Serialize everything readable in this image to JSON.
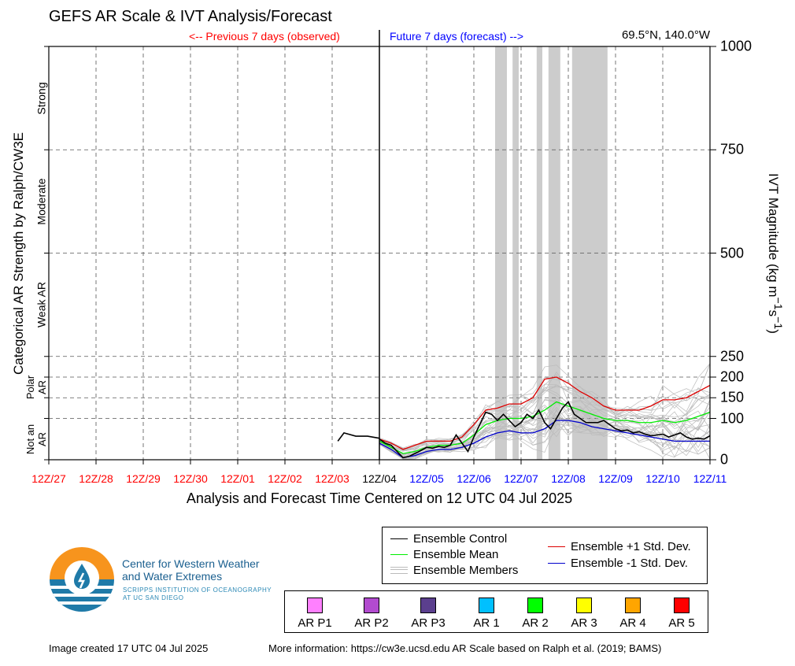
{
  "title": "GEFS AR Scale & IVT Analysis/Forecast",
  "previous_label": "<-- Previous 7 days (observed)",
  "future_label": "Future 7 days (forecast) -->",
  "location": "69.5°N, 140.0°W",
  "colors": {
    "observed": "#ff0000",
    "forecast": "#0000ff",
    "control": "#000000",
    "mean": "#00ee00",
    "plus_std": "#dd0000",
    "minus_std": "#0000cc",
    "members": "#bbbbbb",
    "shading": "#cccccc"
  },
  "chart_data": {
    "type": "line",
    "xlabel": "Analysis and Forecast Time Centered on 12 UTC 04 Jul 2025",
    "ylabel_left": "Categorical AR Strength by Ralph/CW3E",
    "ylabel_right": "IVT Magnitude (kg m-1s-1)",
    "x_ticks": [
      "12Z/27",
      "12Z/28",
      "12Z/29",
      "12Z/30",
      "12Z/01",
      "12Z/02",
      "12Z/03",
      "12Z/04",
      "12Z/05",
      "12Z/06",
      "12Z/07",
      "12Z/08",
      "12Z/09",
      "12Z/10",
      "12Z/11"
    ],
    "x_tick_colors": [
      "obs",
      "obs",
      "obs",
      "obs",
      "obs",
      "obs",
      "obs",
      "now",
      "fc",
      "fc",
      "fc",
      "fc",
      "fc",
      "fc",
      "fc"
    ],
    "y_ticks": [
      0,
      100,
      150,
      200,
      250,
      500,
      750,
      1000
    ],
    "ylim": [
      0,
      1000
    ],
    "xlim_days": [
      -7,
      7
    ],
    "categories": [
      {
        "label": "Not an AR",
        "lo": 0,
        "hi": 100
      },
      {
        "label": "Polar AR",
        "lo": 100,
        "hi": 250
      },
      {
        "label": "Weak AR",
        "lo": 250,
        "hi": 500
      },
      {
        "label": "Moderate",
        "lo": 500,
        "hi": 750
      },
      {
        "label": "Strong",
        "lo": 750,
        "hi": 1000
      }
    ],
    "shaded_periods_days": [
      [
        2.45,
        2.7
      ],
      [
        2.82,
        2.95
      ],
      [
        3.33,
        3.45
      ],
      [
        3.58,
        3.83
      ],
      [
        4.08,
        4.83
      ]
    ],
    "series": [
      {
        "name": "Ensemble Control",
        "role": "observed",
        "x": [
          -0.88,
          -0.75,
          -0.5,
          -0.25,
          0.0
        ],
        "y": [
          45,
          65,
          57,
          57,
          52
        ]
      },
      {
        "name": "Ensemble Control",
        "role": "control",
        "x": [
          0.0,
          0.125,
          0.25,
          0.375,
          0.5,
          0.625,
          0.75,
          0.875,
          1.0,
          1.125,
          1.25,
          1.375,
          1.5,
          1.625,
          1.75,
          1.875,
          2.0,
          2.125,
          2.25,
          2.375,
          2.5,
          2.625,
          2.75,
          2.875,
          3.0,
          3.125,
          3.25,
          3.375,
          3.5,
          3.625,
          3.75,
          3.875,
          4.0,
          4.125,
          4.25,
          4.375,
          4.5,
          4.625,
          4.75,
          4.875,
          5.0,
          5.125,
          5.25,
          5.375,
          5.5,
          5.625,
          5.75,
          5.875,
          6.0,
          6.125,
          6.25,
          6.375,
          6.5,
          6.625,
          6.75,
          6.875,
          7.0
        ],
        "y": [
          50,
          40,
          35,
          20,
          5,
          8,
          15,
          22,
          30,
          28,
          32,
          30,
          35,
          60,
          40,
          20,
          55,
          85,
          115,
          110,
          95,
          110,
          95,
          80,
          90,
          110,
          100,
          120,
          90,
          75,
          100,
          125,
          140,
          110,
          100,
          90,
          90,
          90,
          95,
          85,
          75,
          70,
          72,
          65,
          68,
          62,
          58,
          60,
          62,
          55,
          60,
          65,
          55,
          50,
          52,
          50,
          58
        ]
      },
      {
        "name": "Ensemble Mean",
        "role": "mean",
        "x": [
          0.0,
          0.25,
          0.5,
          0.75,
          1.0,
          1.25,
          1.5,
          1.75,
          2.0,
          2.25,
          2.5,
          2.75,
          3.0,
          3.25,
          3.5,
          3.75,
          4.0,
          4.25,
          4.5,
          4.75,
          5.0,
          5.25,
          5.5,
          5.75,
          6.0,
          6.25,
          6.5,
          6.75,
          7.0
        ],
        "y": [
          45,
          30,
          15,
          20,
          30,
          35,
          35,
          40,
          60,
          85,
          95,
          100,
          100,
          105,
          120,
          140,
          130,
          120,
          110,
          100,
          95,
          95,
          90,
          90,
          95,
          90,
          95,
          105,
          115
        ]
      },
      {
        "name": "Ensemble +1 Std. Dev.",
        "role": "plus_std",
        "x": [
          0.0,
          0.25,
          0.5,
          0.75,
          1.0,
          1.25,
          1.5,
          1.75,
          2.0,
          2.25,
          2.5,
          2.75,
          3.0,
          3.25,
          3.5,
          3.75,
          4.0,
          4.25,
          4.5,
          4.75,
          5.0,
          5.25,
          5.5,
          5.75,
          6.0,
          6.25,
          6.5,
          6.75,
          7.0
        ],
        "y": [
          50,
          40,
          25,
          35,
          45,
          45,
          45,
          55,
          85,
          120,
          125,
          135,
          135,
          150,
          195,
          200,
          185,
          165,
          150,
          130,
          120,
          120,
          120,
          130,
          145,
          145,
          150,
          165,
          180
        ]
      },
      {
        "name": "Ensemble -1 Std. Dev.",
        "role": "minus_std",
        "x": [
          0.0,
          0.25,
          0.5,
          0.75,
          1.0,
          1.25,
          1.5,
          1.75,
          2.0,
          2.25,
          2.5,
          2.75,
          3.0,
          3.25,
          3.5,
          3.75,
          4.0,
          4.25,
          4.5,
          4.75,
          5.0,
          5.25,
          5.5,
          5.75,
          6.0,
          6.25,
          6.5,
          6.75,
          7.0
        ],
        "y": [
          40,
          25,
          5,
          10,
          20,
          25,
          25,
          30,
          40,
          55,
          65,
          70,
          65,
          65,
          75,
          95,
          95,
          90,
          80,
          75,
          70,
          65,
          60,
          55,
          50,
          45,
          45,
          45,
          45
        ]
      }
    ]
  },
  "legend": {
    "control": "Ensemble Control",
    "mean": "Ensemble Mean",
    "members": "Ensemble Members",
    "plus_std": "Ensemble +1 Std. Dev.",
    "minus_std": "Ensemble -1 Std. Dev."
  },
  "ar_scale": [
    {
      "label": "AR P1",
      "color": "#ff80ff"
    },
    {
      "label": "AR P2",
      "color": "#b24bcf"
    },
    {
      "label": "AR P3",
      "color": "#5b3f8e"
    },
    {
      "label": "AR 1",
      "color": "#00c0ff"
    },
    {
      "label": "AR 2",
      "color": "#00ff00"
    },
    {
      "label": "AR 3",
      "color": "#ffff00"
    },
    {
      "label": "AR 4",
      "color": "#ffa500"
    },
    {
      "label": "AR 5",
      "color": "#ff0000"
    }
  ],
  "logo": {
    "line1": "Center for Western Weather",
    "line2": "and Water Extremes",
    "line3": "SCRIPPS INSTITUTION OF OCEANOGRAPHY",
    "line4": "AT UC SAN DIEGO"
  },
  "footer": {
    "created": "Image created 17 UTC 04 Jul 2025",
    "more_info": "More information: https://cw3e.ucsd.edu AR Scale based on Ralph et al. (2019; BAMS)"
  }
}
